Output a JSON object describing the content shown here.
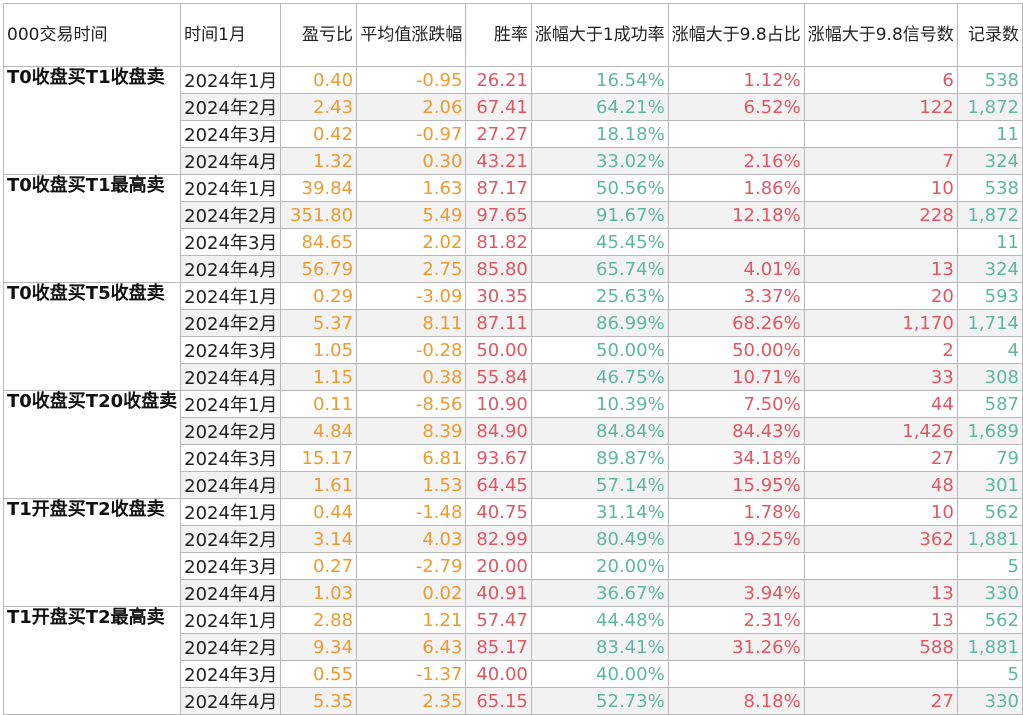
{
  "header": {
    "trade_time": "000交易时间",
    "time_month": "时间1月",
    "profit_loss_ratio": "盈亏比",
    "avg_change": "平均值涨跌幅",
    "win_rate": "胜率",
    "gain_over_1_success_rate": "涨幅大于1成功率",
    "gain_over_9_8_ratio": "涨幅大于9.8占比",
    "gain_over_9_8_signals": "涨幅大于9.8信号数",
    "record_count": "记录数"
  },
  "groups": [
    {
      "name": "T0收盘买T1收盘卖",
      "rows": [
        {
          "month": "2024年1月",
          "pl": "0.40",
          "avg": "-0.95",
          "win": "26.21",
          "s1": "16.54%",
          "s98": "1.12%",
          "sig": "6",
          "rec": "538"
        },
        {
          "month": "2024年2月",
          "pl": "2.43",
          "avg": "2.06",
          "win": "67.41",
          "s1": "64.21%",
          "s98": "6.52%",
          "sig": "122",
          "rec": "1,872"
        },
        {
          "month": "2024年3月",
          "pl": "0.42",
          "avg": "-0.97",
          "win": "27.27",
          "s1": "18.18%",
          "s98": "",
          "sig": "",
          "rec": "11"
        },
        {
          "month": "2024年4月",
          "pl": "1.32",
          "avg": "0.30",
          "win": "43.21",
          "s1": "33.02%",
          "s98": "2.16%",
          "sig": "7",
          "rec": "324"
        }
      ]
    },
    {
      "name": "T0收盘买T1最高卖",
      "rows": [
        {
          "month": "2024年1月",
          "pl": "39.84",
          "avg": "1.63",
          "win": "87.17",
          "s1": "50.56%",
          "s98": "1.86%",
          "sig": "10",
          "rec": "538"
        },
        {
          "month": "2024年2月",
          "pl": "351.80",
          "avg": "5.49",
          "win": "97.65",
          "s1": "91.67%",
          "s98": "12.18%",
          "sig": "228",
          "rec": "1,872"
        },
        {
          "month": "2024年3月",
          "pl": "84.65",
          "avg": "2.02",
          "win": "81.82",
          "s1": "45.45%",
          "s98": "",
          "sig": "",
          "rec": "11"
        },
        {
          "month": "2024年4月",
          "pl": "56.79",
          "avg": "2.75",
          "win": "85.80",
          "s1": "65.74%",
          "s98": "4.01%",
          "sig": "13",
          "rec": "324"
        }
      ]
    },
    {
      "name": "T0收盘买T5收盘卖",
      "rows": [
        {
          "month": "2024年1月",
          "pl": "0.29",
          "avg": "-3.09",
          "win": "30.35",
          "s1": "25.63%",
          "s98": "3.37%",
          "sig": "20",
          "rec": "593"
        },
        {
          "month": "2024年2月",
          "pl": "5.37",
          "avg": "8.11",
          "win": "87.11",
          "s1": "86.99%",
          "s98": "68.26%",
          "sig": "1,170",
          "rec": "1,714"
        },
        {
          "month": "2024年3月",
          "pl": "1.05",
          "avg": "-0.28",
          "win": "50.00",
          "s1": "50.00%",
          "s98": "50.00%",
          "sig": "2",
          "rec": "4"
        },
        {
          "month": "2024年4月",
          "pl": "1.15",
          "avg": "0.38",
          "win": "55.84",
          "s1": "46.75%",
          "s98": "10.71%",
          "sig": "33",
          "rec": "308"
        }
      ]
    },
    {
      "name": "T0收盘买T20收盘卖",
      "rows": [
        {
          "month": "2024年1月",
          "pl": "0.11",
          "avg": "-8.56",
          "win": "10.90",
          "s1": "10.39%",
          "s98": "7.50%",
          "sig": "44",
          "rec": "587"
        },
        {
          "month": "2024年2月",
          "pl": "4.84",
          "avg": "8.39",
          "win": "84.90",
          "s1": "84.84%",
          "s98": "84.43%",
          "sig": "1,426",
          "rec": "1,689"
        },
        {
          "month": "2024年3月",
          "pl": "15.17",
          "avg": "6.81",
          "win": "93.67",
          "s1": "89.87%",
          "s98": "34.18%",
          "sig": "27",
          "rec": "79"
        },
        {
          "month": "2024年4月",
          "pl": "1.61",
          "avg": "1.53",
          "win": "64.45",
          "s1": "57.14%",
          "s98": "15.95%",
          "sig": "48",
          "rec": "301"
        }
      ]
    },
    {
      "name": "T1开盘买T2收盘卖",
      "rows": [
        {
          "month": "2024年1月",
          "pl": "0.44",
          "avg": "-1.48",
          "win": "40.75",
          "s1": "31.14%",
          "s98": "1.78%",
          "sig": "10",
          "rec": "562"
        },
        {
          "month": "2024年2月",
          "pl": "3.14",
          "avg": "4.03",
          "win": "82.99",
          "s1": "80.49%",
          "s98": "19.25%",
          "sig": "362",
          "rec": "1,881"
        },
        {
          "month": "2024年3月",
          "pl": "0.27",
          "avg": "-2.79",
          "win": "20.00",
          "s1": "20.00%",
          "s98": "",
          "sig": "",
          "rec": "5"
        },
        {
          "month": "2024年4月",
          "pl": "1.03",
          "avg": "0.02",
          "win": "40.91",
          "s1": "36.67%",
          "s98": "3.94%",
          "sig": "13",
          "rec": "330"
        }
      ]
    },
    {
      "name": "T1开盘买T2最高卖",
      "rows": [
        {
          "month": "2024年1月",
          "pl": "2.88",
          "avg": "1.21",
          "win": "57.47",
          "s1": "44.48%",
          "s98": "2.31%",
          "sig": "13",
          "rec": "562"
        },
        {
          "month": "2024年2月",
          "pl": "9.34",
          "avg": "6.43",
          "win": "85.17",
          "s1": "83.41%",
          "s98": "31.26%",
          "sig": "588",
          "rec": "1,881"
        },
        {
          "month": "2024年3月",
          "pl": "0.55",
          "avg": "-1.37",
          "win": "40.00",
          "s1": "40.00%",
          "s98": "",
          "sig": "",
          "rec": "5"
        },
        {
          "month": "2024年4月",
          "pl": "5.35",
          "avg": "2.35",
          "win": "65.15",
          "s1": "52.73%",
          "s98": "8.18%",
          "sig": "27",
          "rec": "330"
        }
      ]
    }
  ]
}
